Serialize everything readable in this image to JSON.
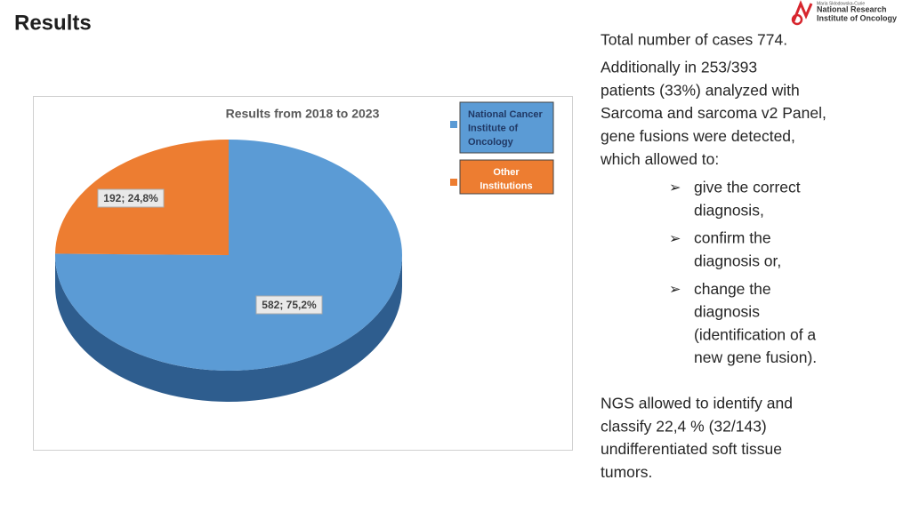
{
  "slide": {
    "title": "Results",
    "logo": {
      "small": "Maria Skłodowska-Curie",
      "line1": "National Research",
      "line2": "Institute of Oncology"
    },
    "intro": "Total number of cases 774.",
    "paragraph": [
      "Additionally in 253/393",
      "patients (33%) analyzed with",
      "Sarcoma and sarcoma v2 Panel,",
      "gene fusions were detected,",
      "which allowed to:"
    ],
    "bullets": [
      [
        "give the correct",
        "diagnosis,"
      ],
      [
        "confirm the",
        "diagnosis or,"
      ],
      [
        "change the",
        "diagnosis",
        "(identification of a",
        "new gene fusion)."
      ]
    ],
    "conclusion": [
      "NGS allowed to identify and",
      "classify 22,4 % (32/143)",
      "undifferentiated soft tissue",
      "tumors."
    ]
  },
  "chart_data": {
    "type": "pie",
    "title": "Results from 2018 to 2023",
    "categories": [
      "National Cancer Institute of Oncology",
      "Other Institutions"
    ],
    "values": [
      582,
      192
    ],
    "value_labels": [
      "582; 75,2%",
      "192; 24,8%"
    ],
    "colors": [
      "#5b9bd5",
      "#ed7d31"
    ]
  }
}
